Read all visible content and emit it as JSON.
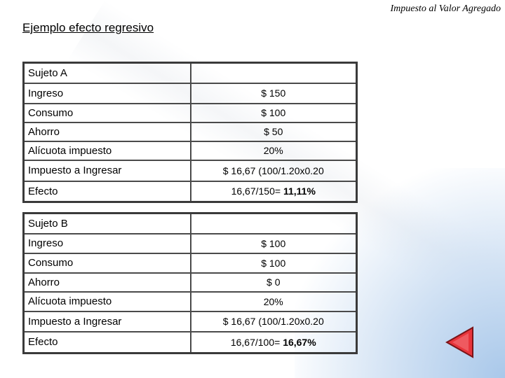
{
  "header": {
    "title": "Impuesto al Valor Agregado"
  },
  "slide": {
    "title": "Ejemplo efecto regresivo"
  },
  "table_a": {
    "subject": "Sujeto A",
    "rows": [
      {
        "label": "Ingreso",
        "value": "$ 150"
      },
      {
        "label": "Consumo",
        "value": "$ 100"
      },
      {
        "label": "Ahorro",
        "value": "$ 50"
      },
      {
        "label": "Alícuota impuesto",
        "value": "20%"
      },
      {
        "label": "Impuesto a Ingresar",
        "value": "$ 16,67 (100/1.20x0.20"
      },
      {
        "label": "Efecto",
        "value_prefix": "16,67/150= ",
        "value_bold": "11,11%"
      }
    ]
  },
  "table_b": {
    "subject": "Sujeto B",
    "rows": [
      {
        "label": "Ingreso",
        "value": "$ 100"
      },
      {
        "label": "Consumo",
        "value": "$ 100"
      },
      {
        "label": "Ahorro",
        "value": "$ 0"
      },
      {
        "label": "Alícuota impuesto",
        "value": "20%"
      },
      {
        "label": "Impuesto a Ingresar",
        "value": "$ 16,67 (100/1.20x0.20"
      },
      {
        "label": "Efecto",
        "value_prefix": "16,67/100= ",
        "value_bold": "16,67%"
      }
    ]
  },
  "nav": {
    "icon": "previous-slide-icon",
    "color": "#e8343b"
  }
}
